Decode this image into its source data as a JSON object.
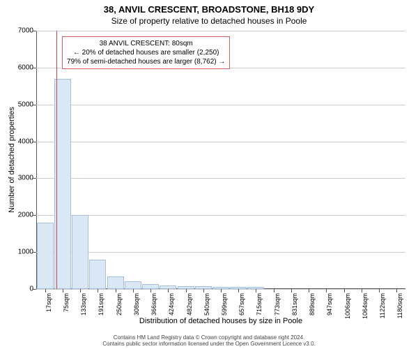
{
  "title": "38, ANVIL CRESCENT, BROADSTONE, BH18 9DY",
  "subtitle": "Size of property relative to detached houses in Poole",
  "y_axis_title": "Number of detached properties",
  "x_axis_title": "Distribution of detached houses by size in Poole",
  "chart": {
    "type": "histogram",
    "background_color": "#ffffff",
    "grid_color": "#cccccc",
    "axis_color": "#555555",
    "bar_fill": "#dae8f5",
    "bar_stroke": "#a3c0e0",
    "marker_color": "#cc4444",
    "ylim": [
      0,
      7000
    ],
    "ytick_step": 1000,
    "yticks": [
      0,
      1000,
      2000,
      3000,
      4000,
      5000,
      6000,
      7000
    ],
    "x_categories": [
      "17sqm",
      "75sqm",
      "133sqm",
      "191sqm",
      "250sqm",
      "308sqm",
      "366sqm",
      "424sqm",
      "482sqm",
      "540sqm",
      "599sqm",
      "657sqm",
      "715sqm",
      "773sqm",
      "831sqm",
      "889sqm",
      "947sqm",
      "1006sqm",
      "1064sqm",
      "1122sqm",
      "1180sqm"
    ],
    "values": [
      1800,
      5700,
      2000,
      800,
      350,
      200,
      130,
      100,
      80,
      70,
      60,
      55,
      50,
      0,
      0,
      0,
      0,
      0,
      0,
      0,
      0
    ],
    "marker_index": 1
  },
  "annotation": {
    "border_color": "#d06060",
    "lines": [
      "38 ANVIL CRESCENT: 80sqm",
      "← 20% of detached houses are smaller (2,250)",
      "79% of semi-detached houses are larger (8,762) →"
    ]
  },
  "footer_lines": [
    "Contains HM Land Registry data © Crown copyright and database right 2024.",
    "Contains public sector information licensed under the Open Government Licence v3.0."
  ]
}
